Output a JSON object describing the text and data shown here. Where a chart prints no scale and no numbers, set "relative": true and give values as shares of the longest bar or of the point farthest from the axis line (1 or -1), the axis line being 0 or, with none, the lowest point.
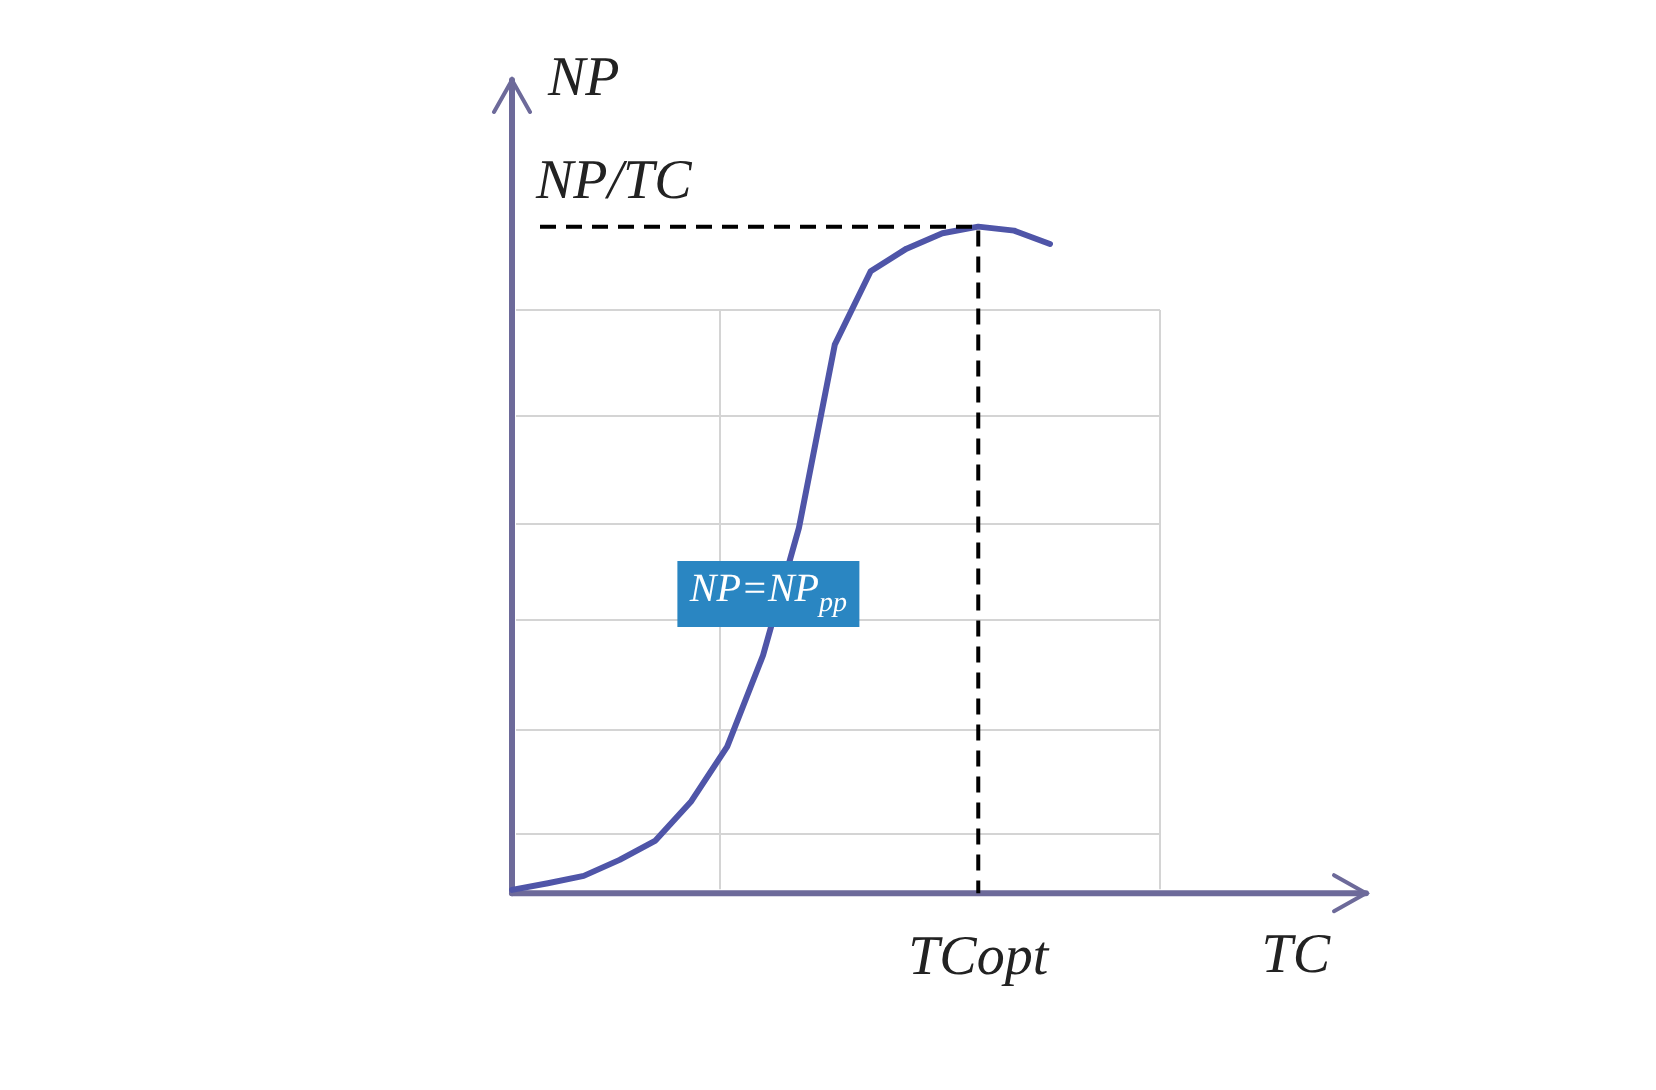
{
  "chart_data": {
    "type": "line",
    "relative": true,
    "xlabel": "TC",
    "ylabel": "NP",
    "categories": [
      null,
      null,
      null,
      null,
      null,
      null,
      null,
      null,
      null,
      null,
      null,
      null,
      null,
      null,
      null,
      null
    ],
    "series": [
      {
        "color": "#4f55a8",
        "values": [
          0.005,
          0.015,
          0.026,
          0.05,
          0.079,
          0.138,
          0.22,
          0.357,
          0.548,
          0.823,
          0.933,
          0.967,
          0.99,
          1,
          0.994,
          0.974
        ]
      }
    ],
    "legend": false,
    "annotations": [
      "NP/TC",
      "TCopt",
      "NP=NP$_{pp}$"
    ]
  }
}
